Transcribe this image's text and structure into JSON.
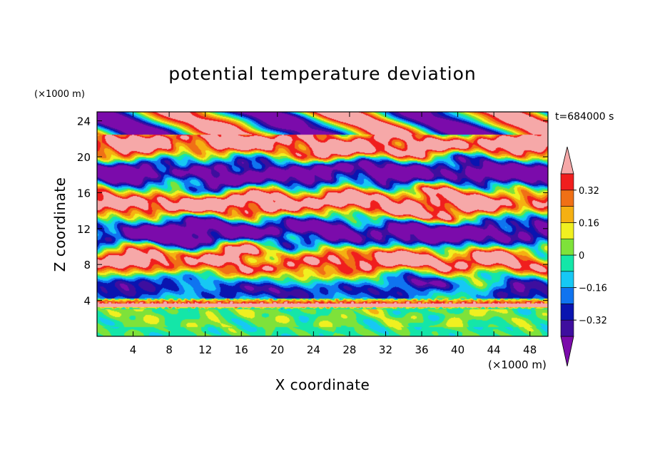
{
  "chart_data": {
    "type": "heatmap",
    "title": "potential temperature deviation",
    "xlabel": "X coordinate",
    "ylabel": "Z coordinate",
    "x_unit": "(×1000 m)",
    "y_unit": "(×1000 m)",
    "time_label": "t=684000 s",
    "xlim": [
      0,
      50
    ],
    "ylim": [
      0,
      25
    ],
    "x_ticks": [
      "4",
      "8",
      "12",
      "16",
      "20",
      "24",
      "28",
      "32",
      "36",
      "40",
      "44",
      "48"
    ],
    "y_ticks": [
      "4",
      "8",
      "12",
      "16",
      "20",
      "24"
    ],
    "colorbar": {
      "levels": [
        -0.4,
        -0.32,
        -0.24,
        -0.16,
        -0.08,
        0,
        0.08,
        0.16,
        0.24,
        0.32,
        0.4
      ],
      "labels": [
        "-0.32",
        "-0.16",
        "0",
        "0.16",
        "0.32"
      ],
      "under_color": "#7b0bab",
      "over_color": "#f6a8a8",
      "colors": [
        "#3e0e9e",
        "#0a14b0",
        "#0f74f0",
        "#16c8f4",
        "#14e6a8",
        "#7ee23a",
        "#f0f020",
        "#f5b012",
        "#f07016",
        "#f01e1e"
      ]
    },
    "field_description": "turbulent layered field of potential temperature deviation; near-neutral/green-cyan boundary layer below z~3 km, sharp band near z~3.5 km, alternating large negative (purple) and positive (pink) lenses above"
  }
}
